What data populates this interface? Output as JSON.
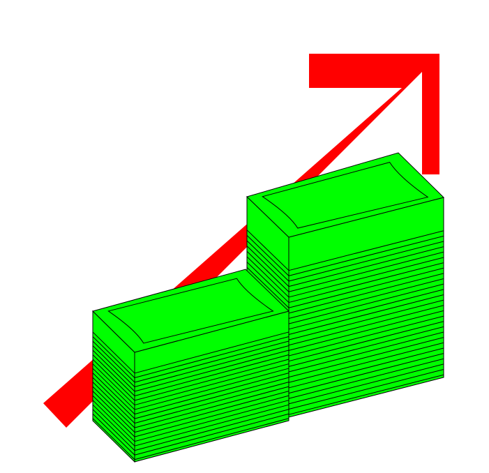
{
  "illustration": {
    "subject": "money-stacks-growth-clipart",
    "colors": {
      "background": "#ffffff",
      "arrow": "#ff0000",
      "bill": "#00ff00",
      "outline": "#000000"
    },
    "icons": [
      "trend-up-arrow-icon",
      "money-stack-icon"
    ],
    "stacks": [
      {
        "name": "short-stack",
        "bill_count": 20
      },
      {
        "name": "tall-stack",
        "bill_count": 28
      }
    ]
  }
}
